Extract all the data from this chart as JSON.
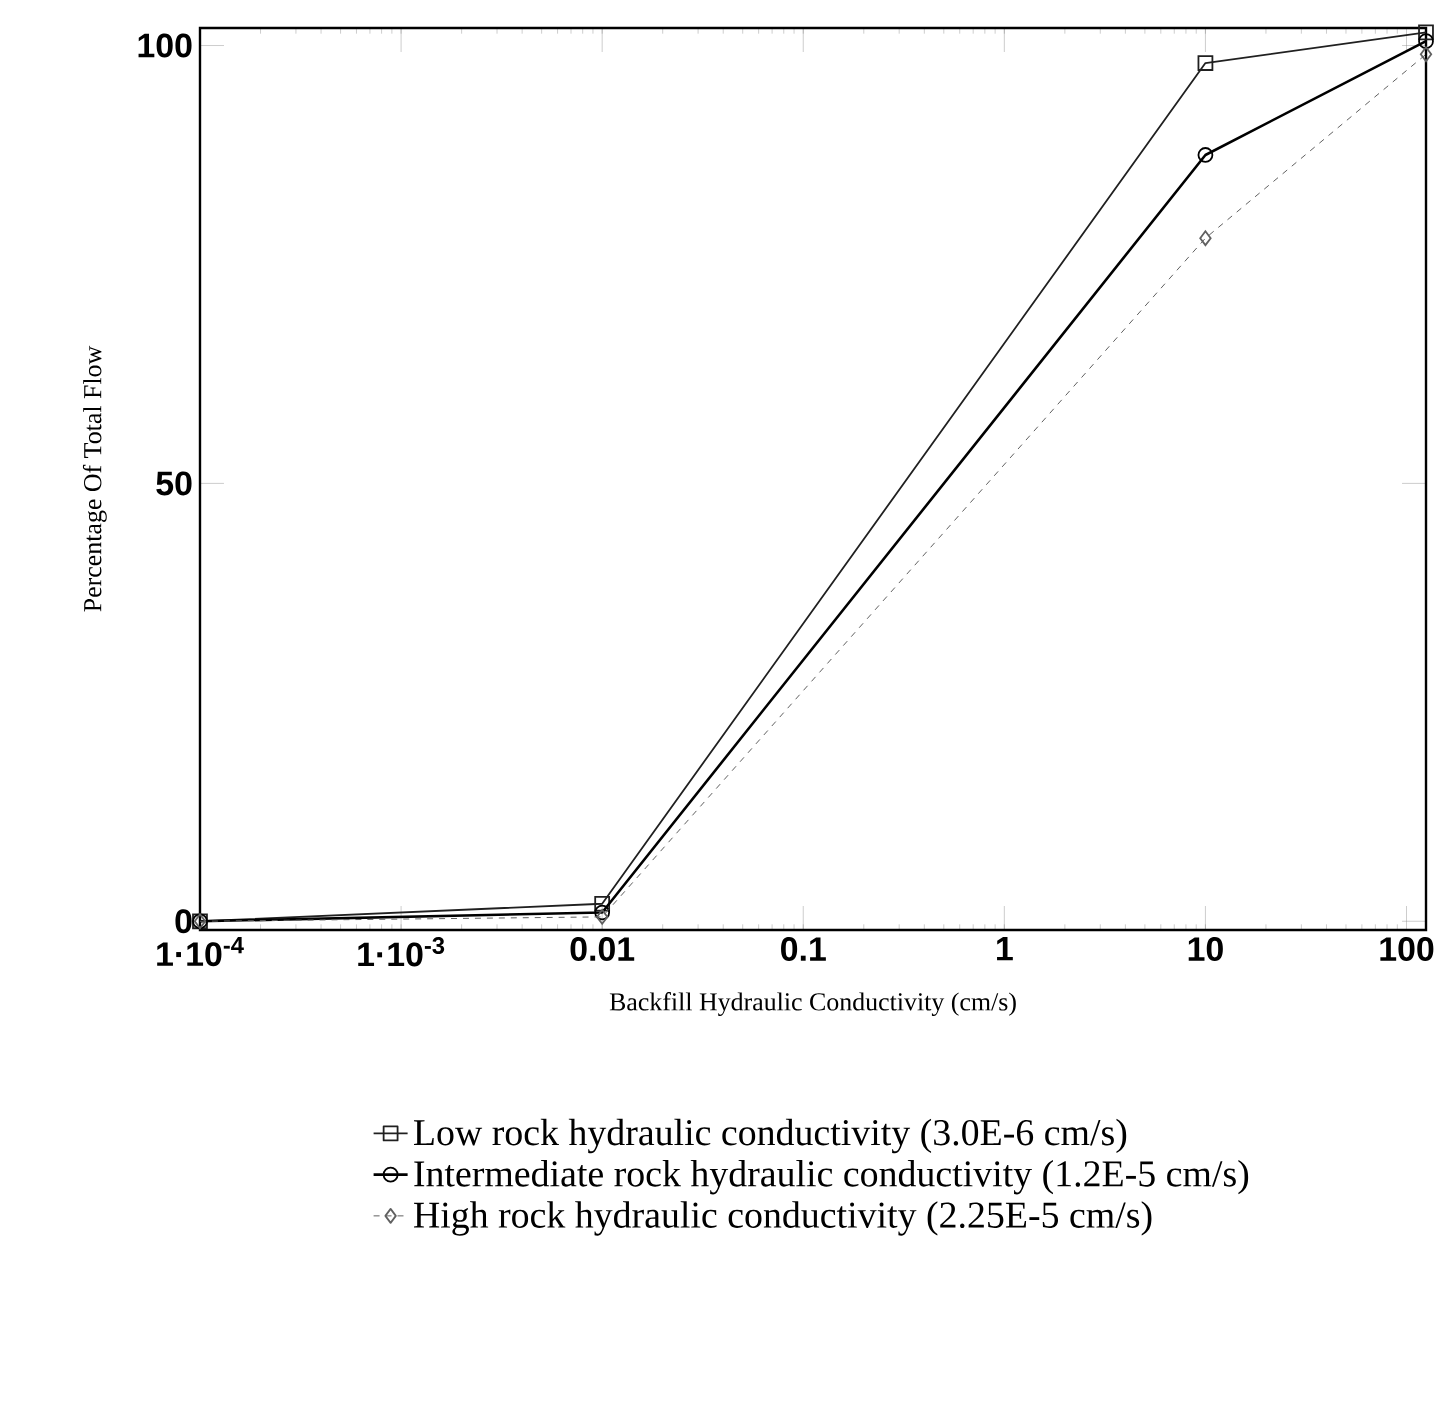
{
  "chart_data": {
    "type": "line",
    "xlabel": "Backfill Hydraulic Conductivity (cm/s)",
    "ylabel": "Percentage Of Total Flow",
    "log": "x",
    "x": [
      0.0001,
      0.01,
      10,
      125
    ],
    "xlim": [
      0.0001,
      125
    ],
    "ylim": [
      -1,
      102
    ],
    "xticks": [
      {
        "value": 0.0001,
        "label": "1·10$^{-4}$"
      },
      {
        "value": 0.001,
        "label": "1·10$^{-3}$"
      },
      {
        "value": 0.01,
        "label": "0.01"
      },
      {
        "value": 0.1,
        "label": "0.1"
      },
      {
        "value": 1,
        "label": "1"
      },
      {
        "value": 10,
        "label": "10"
      },
      {
        "value": 100,
        "label": "100"
      }
    ],
    "yticks": [
      0,
      50,
      100
    ],
    "grid": false,
    "legend": "bottom",
    "series": [
      {
        "name": "Low rock hydraulic conductivity (3.0E-6 cm/s)",
        "color": "#202020",
        "marker": "square",
        "line_style": "solid",
        "values": [
          0,
          2,
          98,
          101.5
        ]
      },
      {
        "name": "Intermediate rock hydraulic conductivity (1.2E-5 cm/s)",
        "color": "#000000",
        "marker": "circle",
        "line_style": "solid",
        "values": [
          0,
          1,
          87.5,
          100.5
        ]
      },
      {
        "name": "High rock hydraulic conductivity (2.25E-5 cm/s)",
        "color": "#606060",
        "marker": "diamond",
        "line_style": "dashed",
        "values": [
          0,
          0.5,
          78,
          99
        ]
      }
    ]
  }
}
